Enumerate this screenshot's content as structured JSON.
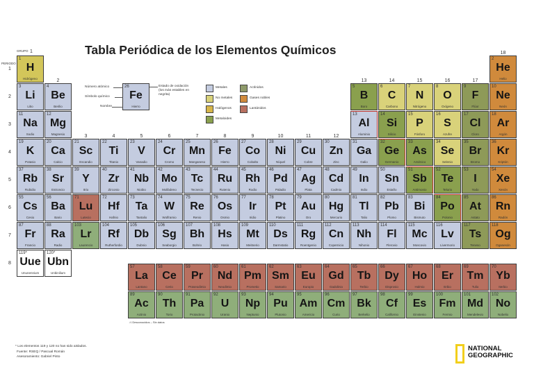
{
  "title": "Tabla Periódica de los Elementos Químicos",
  "group_label": "GRUPO",
  "period_label": "PERIODO",
  "groups": [
    "1",
    "2",
    "3",
    "4",
    "5",
    "6",
    "7",
    "8",
    "9",
    "10",
    "11",
    "12",
    "13",
    "14",
    "15",
    "16",
    "17",
    "18"
  ],
  "periods": [
    "1",
    "2",
    "3",
    "4",
    "5",
    "6",
    "7",
    "8"
  ],
  "key": {
    "atomic_number_label": "Número atómico",
    "symbol_label": "Símbolo químico",
    "name_label": "Nombre",
    "oxidation_label": "Estado de oxidación (los más estables en negrita)",
    "sample": {
      "z": "26",
      "symbol": "Fe",
      "name": "Hierro"
    }
  },
  "legend": [
    {
      "label": "Metales",
      "color": "#c4cce0"
    },
    {
      "label": "No metales",
      "color": "#d9d27a"
    },
    {
      "label": "Halógenos",
      "color": "#d7b64a"
    },
    {
      "label": "Metaloides",
      "color": "#8aa04e"
    },
    {
      "label": "Actínidos",
      "color": "#8e9a6a"
    },
    {
      "label": "Gases nobles",
      "color": "#d08a3c"
    },
    {
      "label": "Lantánidos",
      "color": "#b87060"
    }
  ],
  "elements": [
    [
      "1",
      "H",
      "Hidrógeno",
      "h",
      1,
      1
    ],
    [
      "2",
      "He",
      "Helio",
      "g",
      18,
      1
    ],
    [
      "3",
      "Li",
      "Litio",
      "m",
      1,
      2
    ],
    [
      "4",
      "Be",
      "Berilio",
      "m",
      2,
      2
    ],
    [
      "5",
      "B",
      "Boro",
      "d",
      13,
      2
    ],
    [
      "6",
      "C",
      "Carbono",
      "n",
      14,
      2
    ],
    [
      "7",
      "N",
      "Nitrógeno",
      "n",
      15,
      2
    ],
    [
      "8",
      "O",
      "Oxígeno",
      "n",
      16,
      2
    ],
    [
      "9",
      "F",
      "Flúor",
      "x",
      17,
      2
    ],
    [
      "10",
      "Ne",
      "Neón",
      "g",
      18,
      2
    ],
    [
      "11",
      "Na",
      "Sodio",
      "m",
      1,
      3
    ],
    [
      "12",
      "Mg",
      "Magnesio",
      "m",
      2,
      3
    ],
    [
      "13",
      "Al",
      "Aluminio",
      "m",
      13,
      3
    ],
    [
      "14",
      "Si",
      "Silicio",
      "d",
      14,
      3
    ],
    [
      "15",
      "P",
      "Fósforo",
      "n",
      15,
      3
    ],
    [
      "16",
      "S",
      "Azufre",
      "n",
      16,
      3
    ],
    [
      "17",
      "Cl",
      "Cloro",
      "x",
      17,
      3
    ],
    [
      "18",
      "Ar",
      "Argón",
      "g",
      18,
      3
    ],
    [
      "19",
      "K",
      "Potasio",
      "m",
      1,
      4
    ],
    [
      "20",
      "Ca",
      "Calcio",
      "m",
      2,
      4
    ],
    [
      "21",
      "Sc",
      "Escandio",
      "m",
      3,
      4
    ],
    [
      "22",
      "Ti",
      "Titanio",
      "m",
      4,
      4
    ],
    [
      "23",
      "V",
      "Vanadio",
      "m",
      5,
      4
    ],
    [
      "24",
      "Cr",
      "Cromo",
      "m",
      6,
      4
    ],
    [
      "25",
      "Mn",
      "Manganeso",
      "m",
      7,
      4
    ],
    [
      "26",
      "Fe",
      "Hierro",
      "m",
      8,
      4
    ],
    [
      "27",
      "Co",
      "Cobalto",
      "m",
      9,
      4
    ],
    [
      "28",
      "Ni",
      "Níquel",
      "m",
      10,
      4
    ],
    [
      "29",
      "Cu",
      "Cobre",
      "m",
      11,
      4
    ],
    [
      "30",
      "Zn",
      "Zinc",
      "m",
      12,
      4
    ],
    [
      "31",
      "Ga",
      "Galio",
      "m",
      13,
      4
    ],
    [
      "32",
      "Ge",
      "Germanio",
      "d",
      14,
      4
    ],
    [
      "33",
      "As",
      "Arsénico",
      "d",
      15,
      4
    ],
    [
      "34",
      "Se",
      "Selenio",
      "n",
      16,
      4
    ],
    [
      "35",
      "Br",
      "Bromo",
      "x",
      17,
      4
    ],
    [
      "36",
      "Kr",
      "Kriptón",
      "g",
      18,
      4
    ],
    [
      "37",
      "Rb",
      "Rubidio",
      "m",
      1,
      5
    ],
    [
      "38",
      "Sr",
      "Estroncio",
      "m",
      2,
      5
    ],
    [
      "39",
      "Y",
      "Itrio",
      "m",
      3,
      5
    ],
    [
      "40",
      "Zr",
      "Zirconio",
      "m",
      4,
      5
    ],
    [
      "41",
      "Nb",
      "Niobio",
      "m",
      5,
      5
    ],
    [
      "42",
      "Mo",
      "Molibdeno",
      "m",
      6,
      5
    ],
    [
      "43",
      "Tc",
      "Tecnecio",
      "m",
      7,
      5
    ],
    [
      "44",
      "Ru",
      "Rutenio",
      "m",
      8,
      5
    ],
    [
      "45",
      "Rh",
      "Rodio",
      "m",
      9,
      5
    ],
    [
      "46",
      "Pd",
      "Paladio",
      "m",
      10,
      5
    ],
    [
      "47",
      "Ag",
      "Plata",
      "m",
      11,
      5
    ],
    [
      "48",
      "Cd",
      "Cadmio",
      "m",
      12,
      5
    ],
    [
      "49",
      "In",
      "Indio",
      "m",
      13,
      5
    ],
    [
      "50",
      "Sn",
      "Estaño",
      "m",
      14,
      5
    ],
    [
      "51",
      "Sb",
      "Antimonio",
      "d",
      15,
      5
    ],
    [
      "52",
      "Te",
      "Telurio",
      "d",
      16,
      5
    ],
    [
      "53",
      "I",
      "Yodo",
      "x",
      17,
      5
    ],
    [
      "54",
      "Xe",
      "Xenón",
      "g",
      18,
      5
    ],
    [
      "55",
      "Cs",
      "Cesio",
      "m",
      1,
      6
    ],
    [
      "56",
      "Ba",
      "Bario",
      "m",
      2,
      6
    ],
    [
      "71",
      "Lu",
      "Lutecio",
      "l",
      3,
      6
    ],
    [
      "72",
      "Hf",
      "Hafnio",
      "m",
      4,
      6
    ],
    [
      "73",
      "Ta",
      "Tantalio",
      "m",
      5,
      6
    ],
    [
      "74",
      "W",
      "Wolframio",
      "m",
      6,
      6
    ],
    [
      "75",
      "Re",
      "Renio",
      "m",
      7,
      6
    ],
    [
      "76",
      "Os",
      "Osmio",
      "m",
      8,
      6
    ],
    [
      "77",
      "Ir",
      "Iridio",
      "m",
      9,
      6
    ],
    [
      "78",
      "Pt",
      "Platino",
      "m",
      10,
      6
    ],
    [
      "79",
      "Au",
      "Oro",
      "m",
      11,
      6
    ],
    [
      "80",
      "Hg",
      "Mercurio",
      "m",
      12,
      6
    ],
    [
      "81",
      "Tl",
      "Talio",
      "m",
      13,
      6
    ],
    [
      "82",
      "Pb",
      "Plomo",
      "m",
      14,
      6
    ],
    [
      "83",
      "Bi",
      "Bismuto",
      "m",
      15,
      6
    ],
    [
      "84",
      "Po",
      "Polonio",
      "d",
      16,
      6
    ],
    [
      "85",
      "At",
      "Astato",
      "x",
      17,
      6
    ],
    [
      "86",
      "Rn",
      "Radón",
      "g",
      18,
      6
    ],
    [
      "87",
      "Fr",
      "Francio",
      "m",
      1,
      7
    ],
    [
      "88",
      "Ra",
      "Radio",
      "m",
      2,
      7
    ],
    [
      "103",
      "Lr",
      "Laurencio",
      "a",
      3,
      7
    ],
    [
      "104",
      "Rf",
      "Rutherfordio",
      "m",
      4,
      7
    ],
    [
      "105",
      "Db",
      "Dubnio",
      "m",
      5,
      7
    ],
    [
      "106",
      "Sg",
      "Seaborgio",
      "m",
      6,
      7
    ],
    [
      "107",
      "Bh",
      "Bohrio",
      "m",
      7,
      7
    ],
    [
      "108",
      "Hs",
      "Hasio",
      "m",
      8,
      7
    ],
    [
      "109",
      "Mt",
      "Meitnerio",
      "m",
      9,
      7
    ],
    [
      "110",
      "Ds",
      "Darmstatio",
      "m",
      10,
      7
    ],
    [
      "111",
      "Rg",
      "Roentgenio",
      "m",
      11,
      7
    ],
    [
      "112",
      "Cn",
      "Copernicio",
      "m",
      12,
      7
    ],
    [
      "113",
      "Nh",
      "Nihonio",
      "m",
      13,
      7
    ],
    [
      "114",
      "Fl",
      "Flerovio",
      "m",
      14,
      7
    ],
    [
      "115",
      "Mc",
      "Moscovio",
      "m",
      15,
      7
    ],
    [
      "116",
      "Lv",
      "Livermorio",
      "m",
      16,
      7
    ],
    [
      "117",
      "Ts",
      "Teneso",
      "x",
      17,
      7
    ],
    [
      "118",
      "Og",
      "Oganesón",
      "g",
      18,
      7
    ],
    [
      "119*",
      "Uue",
      "Ununennium",
      "u",
      1,
      8
    ],
    [
      "120*",
      "Ubn",
      "Unbinilium",
      "u",
      2,
      8
    ]
  ],
  "lanthanides": [
    [
      "57",
      "La",
      "Lantano"
    ],
    [
      "58",
      "Ce",
      "Cerio"
    ],
    [
      "59",
      "Pr",
      "Praseodimio"
    ],
    [
      "60",
      "Nd",
      "Neodimio"
    ],
    [
      "61",
      "Pm",
      "Prometio"
    ],
    [
      "62",
      "Sm",
      "Samario"
    ],
    [
      "63",
      "Eu",
      "Europio"
    ],
    [
      "64",
      "Gd",
      "Gadolinio"
    ],
    [
      "65",
      "Tb",
      "Terbio"
    ],
    [
      "66",
      "Dy",
      "Disprosio"
    ],
    [
      "67",
      "Ho",
      "Holmio"
    ],
    [
      "68",
      "Er",
      "Erbio"
    ],
    [
      "69",
      "Tm",
      "Tulio"
    ],
    [
      "70",
      "Yb",
      "Iterbio"
    ]
  ],
  "actinides": [
    [
      "89",
      "Ac",
      "Actinio"
    ],
    [
      "90",
      "Th",
      "Torio"
    ],
    [
      "91",
      "Pa",
      "Protactinio"
    ],
    [
      "92",
      "U",
      "Uranio"
    ],
    [
      "93",
      "Np",
      "Neptunio"
    ],
    [
      "94",
      "Pu",
      "Plutonio"
    ],
    [
      "95",
      "Am",
      "Americio"
    ],
    [
      "96",
      "Cm",
      "Curio"
    ],
    [
      "97",
      "Bk",
      "Berkelio"
    ],
    [
      "98",
      "Cf",
      "Californio"
    ],
    [
      "99",
      "Es",
      "Einstenio"
    ],
    [
      "100",
      "Fm",
      "Fermio"
    ],
    [
      "101",
      "Md",
      "Mendelevio"
    ],
    [
      "102",
      "No",
      "Nobelio"
    ]
  ],
  "fblock_note": "↓† Desconocidos   – Sin datos",
  "footer": {
    "note": "* Los elementos 119 y 120 no han sido aislados.",
    "source": "Fuente: RSEQ / Pascual Román",
    "advisor": "Asesoramiento: Gabriel Pinto"
  },
  "logo": {
    "line1": "NATIONAL",
    "line2": "GEOGRAPHIC"
  }
}
